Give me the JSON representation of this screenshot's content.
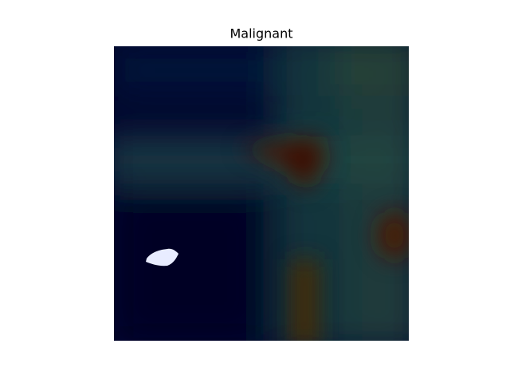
{
  "title": "Malignant"
}
